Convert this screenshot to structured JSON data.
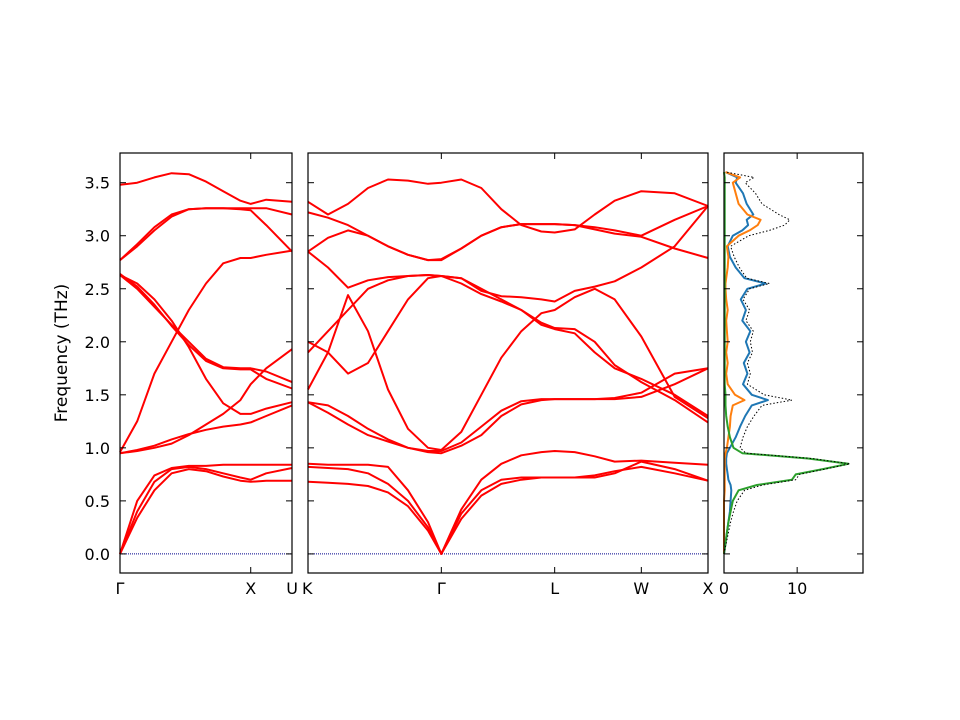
{
  "chart_data": {
    "type": "line",
    "ylabel": "Frequency (THz)",
    "ylim": [
      -0.18,
      3.78
    ],
    "yticks": [
      "0.0",
      "0.5",
      "1.0",
      "1.5",
      "2.0",
      "2.5",
      "3.0",
      "3.5"
    ],
    "band_color": "#ff0000",
    "zero_line_color": "#00008b",
    "panels": [
      {
        "name": "gamma-x-u",
        "xticks": [
          {
            "pos": 0.0,
            "label": "Γ"
          },
          {
            "pos": 0.76,
            "label": "X"
          },
          {
            "pos": 1.0,
            "label": "U"
          }
        ],
        "x": [
          0,
          0.1,
          0.2,
          0.3,
          0.4,
          0.5,
          0.6,
          0.7,
          0.76,
          0.85,
          1.0
        ],
        "bands": [
          [
            0.0,
            0.34,
            0.6,
            0.76,
            0.8,
            0.78,
            0.73,
            0.69,
            0.68,
            0.69,
            0.69
          ],
          [
            0.0,
            0.4,
            0.68,
            0.8,
            0.82,
            0.8,
            0.76,
            0.72,
            0.7,
            0.76,
            0.81
          ],
          [
            0.0,
            0.5,
            0.74,
            0.81,
            0.83,
            0.83,
            0.84,
            0.84,
            0.84,
            0.84,
            0.84
          ],
          [
            0.95,
            0.98,
            1.02,
            1.08,
            1.13,
            1.17,
            1.2,
            1.22,
            1.24,
            1.3,
            1.4
          ],
          [
            0.95,
            0.97,
            1.0,
            1.04,
            1.12,
            1.22,
            1.32,
            1.45,
            1.6,
            1.75,
            1.93
          ],
          [
            0.96,
            1.25,
            1.7,
            2.0,
            2.3,
            2.55,
            2.74,
            2.79,
            2.79,
            2.82,
            2.86
          ],
          [
            2.63,
            2.55,
            2.4,
            2.2,
            1.95,
            1.65,
            1.42,
            1.32,
            1.32,
            1.37,
            1.43
          ],
          [
            2.63,
            2.5,
            2.33,
            2.16,
            2.0,
            1.84,
            1.76,
            1.75,
            1.75,
            1.72,
            1.62
          ],
          [
            2.64,
            2.52,
            2.35,
            2.15,
            1.97,
            1.82,
            1.75,
            1.74,
            1.74,
            1.65,
            1.56
          ],
          [
            2.77,
            2.9,
            3.05,
            3.18,
            3.25,
            3.26,
            3.26,
            3.26,
            3.26,
            3.26,
            3.2
          ],
          [
            2.77,
            2.92,
            3.08,
            3.2,
            3.25,
            3.26,
            3.26,
            3.25,
            3.24,
            3.1,
            2.85
          ],
          [
            3.48,
            3.5,
            3.55,
            3.59,
            3.58,
            3.51,
            3.42,
            3.33,
            3.3,
            3.34,
            3.32
          ]
        ]
      },
      {
        "name": "k-gamma-l-w-x",
        "xticks": [
          {
            "pos": 0.0,
            "label": "K"
          },
          {
            "pos": 1.0,
            "label": "Γ"
          },
          {
            "pos": 1.85,
            "label": "L"
          },
          {
            "pos": 2.5,
            "label": "W"
          },
          {
            "pos": 3.0,
            "label": "X"
          }
        ],
        "x": [
          0,
          0.15,
          0.3,
          0.45,
          0.6,
          0.75,
          0.9,
          1.0,
          1.15,
          1.3,
          1.45,
          1.6,
          1.75,
          1.85,
          2.0,
          2.15,
          2.3,
          2.5,
          2.75,
          3.0
        ],
        "bands": [
          [
            0.68,
            0.67,
            0.66,
            0.64,
            0.58,
            0.45,
            0.22,
            0.0,
            0.33,
            0.55,
            0.66,
            0.7,
            0.72,
            0.72,
            0.72,
            0.74,
            0.78,
            0.82,
            0.76,
            0.69
          ],
          [
            0.82,
            0.81,
            0.8,
            0.76,
            0.66,
            0.5,
            0.25,
            0.0,
            0.38,
            0.6,
            0.7,
            0.72,
            0.72,
            0.72,
            0.72,
            0.72,
            0.76,
            0.87,
            0.8,
            0.69
          ],
          [
            0.85,
            0.84,
            0.84,
            0.84,
            0.82,
            0.6,
            0.3,
            0.0,
            0.42,
            0.7,
            0.85,
            0.93,
            0.96,
            0.97,
            0.96,
            0.92,
            0.87,
            0.88,
            0.86,
            0.84
          ],
          [
            1.43,
            1.33,
            1.22,
            1.12,
            1.06,
            1.0,
            0.96,
            0.95,
            1.02,
            1.12,
            1.3,
            1.41,
            1.45,
            1.46,
            1.46,
            1.46,
            1.46,
            1.48,
            1.6,
            1.75
          ],
          [
            1.43,
            1.4,
            1.3,
            1.18,
            1.08,
            1.0,
            0.97,
            0.97,
            1.05,
            1.2,
            1.35,
            1.44,
            1.46,
            1.46,
            1.46,
            1.46,
            1.47,
            1.52,
            1.7,
            1.75
          ],
          [
            1.55,
            1.9,
            2.44,
            2.1,
            1.55,
            1.18,
            1.0,
            0.98,
            1.15,
            1.5,
            1.85,
            2.1,
            2.27,
            2.3,
            2.42,
            2.5,
            2.4,
            2.05,
            1.48,
            1.28
          ],
          [
            1.9,
            2.1,
            2.3,
            2.5,
            2.58,
            2.62,
            2.63,
            2.62,
            2.6,
            2.5,
            2.4,
            2.3,
            2.18,
            2.13,
            2.12,
            2.0,
            1.78,
            1.62,
            1.45,
            1.24
          ],
          [
            2.0,
            1.9,
            1.7,
            1.8,
            2.1,
            2.4,
            2.6,
            2.62,
            2.55,
            2.45,
            2.38,
            2.3,
            2.16,
            2.12,
            2.08,
            1.9,
            1.75,
            1.65,
            1.5,
            1.3
          ],
          [
            2.85,
            2.7,
            2.51,
            2.58,
            2.61,
            2.62,
            2.63,
            2.62,
            2.6,
            2.48,
            2.43,
            2.42,
            2.4,
            2.38,
            2.48,
            2.52,
            2.57,
            2.7,
            2.9,
            3.28
          ],
          [
            2.85,
            2.98,
            3.05,
            3.0,
            2.9,
            2.82,
            2.77,
            2.77,
            2.88,
            3.0,
            3.08,
            3.11,
            3.11,
            3.11,
            3.1,
            3.08,
            3.05,
            3.0,
            3.15,
            3.28
          ],
          [
            3.22,
            3.17,
            3.1,
            3.0,
            2.9,
            2.82,
            2.77,
            2.78,
            2.88,
            3.0,
            3.08,
            3.11,
            3.11,
            3.11,
            3.1,
            3.06,
            3.02,
            2.99,
            2.88,
            2.79
          ],
          [
            3.32,
            3.2,
            3.3,
            3.45,
            3.53,
            3.52,
            3.49,
            3.5,
            3.53,
            3.45,
            3.25,
            3.1,
            3.04,
            3.03,
            3.06,
            3.2,
            3.33,
            3.42,
            3.4,
            3.28
          ]
        ]
      }
    ],
    "dos": {
      "xlim": [
        0,
        19
      ],
      "xticks": [
        {
          "pos": 0,
          "label": "0"
        },
        {
          "pos": 10,
          "label": "10"
        }
      ],
      "y": [
        0.0,
        0.1,
        0.2,
        0.3,
        0.4,
        0.5,
        0.6,
        0.65,
        0.7,
        0.75,
        0.8,
        0.85,
        0.9,
        0.95,
        1.0,
        1.1,
        1.2,
        1.3,
        1.4,
        1.45,
        1.5,
        1.6,
        1.7,
        1.8,
        1.9,
        2.0,
        2.1,
        2.2,
        2.3,
        2.4,
        2.5,
        2.55,
        2.6,
        2.7,
        2.8,
        2.9,
        3.0,
        3.05,
        3.1,
        3.15,
        3.2,
        3.3,
        3.4,
        3.5,
        3.55,
        3.6
      ],
      "series": [
        {
          "color": "#1f77b4",
          "style": "solid",
          "values": [
            0,
            0.2,
            0.4,
            0.6,
            0.8,
            0.9,
            1.0,
            0.9,
            0.6,
            0.5,
            0.4,
            0.3,
            0.3,
            0.4,
            0.8,
            1.6,
            2.2,
            2.9,
            3.8,
            6.0,
            3.8,
            2.6,
            3.2,
            2.7,
            3.5,
            3.0,
            3.6,
            2.5,
            3.0,
            2.3,
            3.2,
            5.7,
            2.8,
            1.6,
            0.8,
            0.5,
            1.2,
            2.5,
            3.3,
            3.1,
            4.0,
            3.1,
            2.6,
            1.6,
            1.8,
            0.2
          ]
        },
        {
          "color": "#ff7f0e",
          "style": "solid",
          "values": [
            0,
            0,
            0,
            0,
            0,
            0,
            0.1,
            0.1,
            0.1,
            0.1,
            0.1,
            0.1,
            0.1,
            0.2,
            0.4,
            0.6,
            0.8,
            0.9,
            1.2,
            2.8,
            1.5,
            0.5,
            0.3,
            0.5,
            0.3,
            0.5,
            0.4,
            0.3,
            0.5,
            0.3,
            0.2,
            0.2,
            0.3,
            0.5,
            0.6,
            0.4,
            2.0,
            3.5,
            4.6,
            5.0,
            3.2,
            2.0,
            1.6,
            1.2,
            2.2,
            0.2
          ]
        },
        {
          "color": "#2ca02c",
          "style": "solid",
          "values": [
            0,
            0.2,
            0.4,
            0.6,
            0.9,
            1.2,
            2.0,
            4.5,
            9.3,
            9.8,
            13.5,
            17.0,
            11.5,
            2.5,
            1.3,
            0.8,
            0.5,
            0.3,
            0.2,
            0.2,
            0.2,
            0.1,
            0.1,
            0.1,
            0.1,
            0.1,
            0.1,
            0.1,
            0.1,
            0.1,
            0.1,
            0.1,
            0.1,
            0.1,
            0.1,
            0.1,
            0.1,
            0.1,
            0.1,
            0.1,
            0.1,
            0.1,
            0.1,
            0.1,
            0.1,
            0
          ]
        },
        {
          "color": "#000000",
          "style": "dotted",
          "values": [
            0,
            0.3,
            0.6,
            0.9,
            1.3,
            1.8,
            2.8,
            5.3,
            9.8,
            10.3,
            13.8,
            17.2,
            12.0,
            3.0,
            2.2,
            2.6,
            3.2,
            4.1,
            5.2,
            9.3,
            5.5,
            3.2,
            3.6,
            3.2,
            3.9,
            3.6,
            4.0,
            3.0,
            3.5,
            2.6,
            3.5,
            6.2,
            3.1,
            2.1,
            1.4,
            0.9,
            3.4,
            6.2,
            8.3,
            9.0,
            7.5,
            5.2,
            4.3,
            2.9,
            4.1,
            0.3
          ]
        }
      ]
    }
  }
}
